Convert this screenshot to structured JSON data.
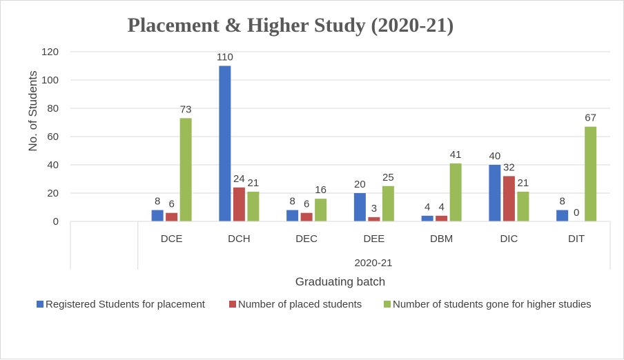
{
  "chart_data": {
    "type": "bar",
    "title": "Placement & Higher Study (2020-21)",
    "xlabel": "Graduating batch",
    "ylabel": "No. of Students",
    "group_label": "2020-21",
    "categories": [
      "",
      "DCE",
      "DCH",
      "DEC",
      "DEE",
      "DBM",
      "DIC",
      "DIT"
    ],
    "ylim": [
      0,
      120
    ],
    "yticks": [
      0,
      20,
      40,
      60,
      80,
      100,
      120
    ],
    "grid": true,
    "legend_position": "bottom",
    "series": [
      {
        "name": "Registered Students for placement",
        "color": "#4472C4",
        "values": [
          null,
          8,
          110,
          8,
          20,
          4,
          40,
          8
        ]
      },
      {
        "name": "Number of placed students",
        "color": "#C0504D",
        "values": [
          null,
          6,
          24,
          6,
          3,
          4,
          32,
          0
        ]
      },
      {
        "name": "Number of students gone for higher studies",
        "color": "#9BBB59",
        "values": [
          null,
          73,
          21,
          16,
          25,
          41,
          21,
          67
        ]
      }
    ]
  }
}
